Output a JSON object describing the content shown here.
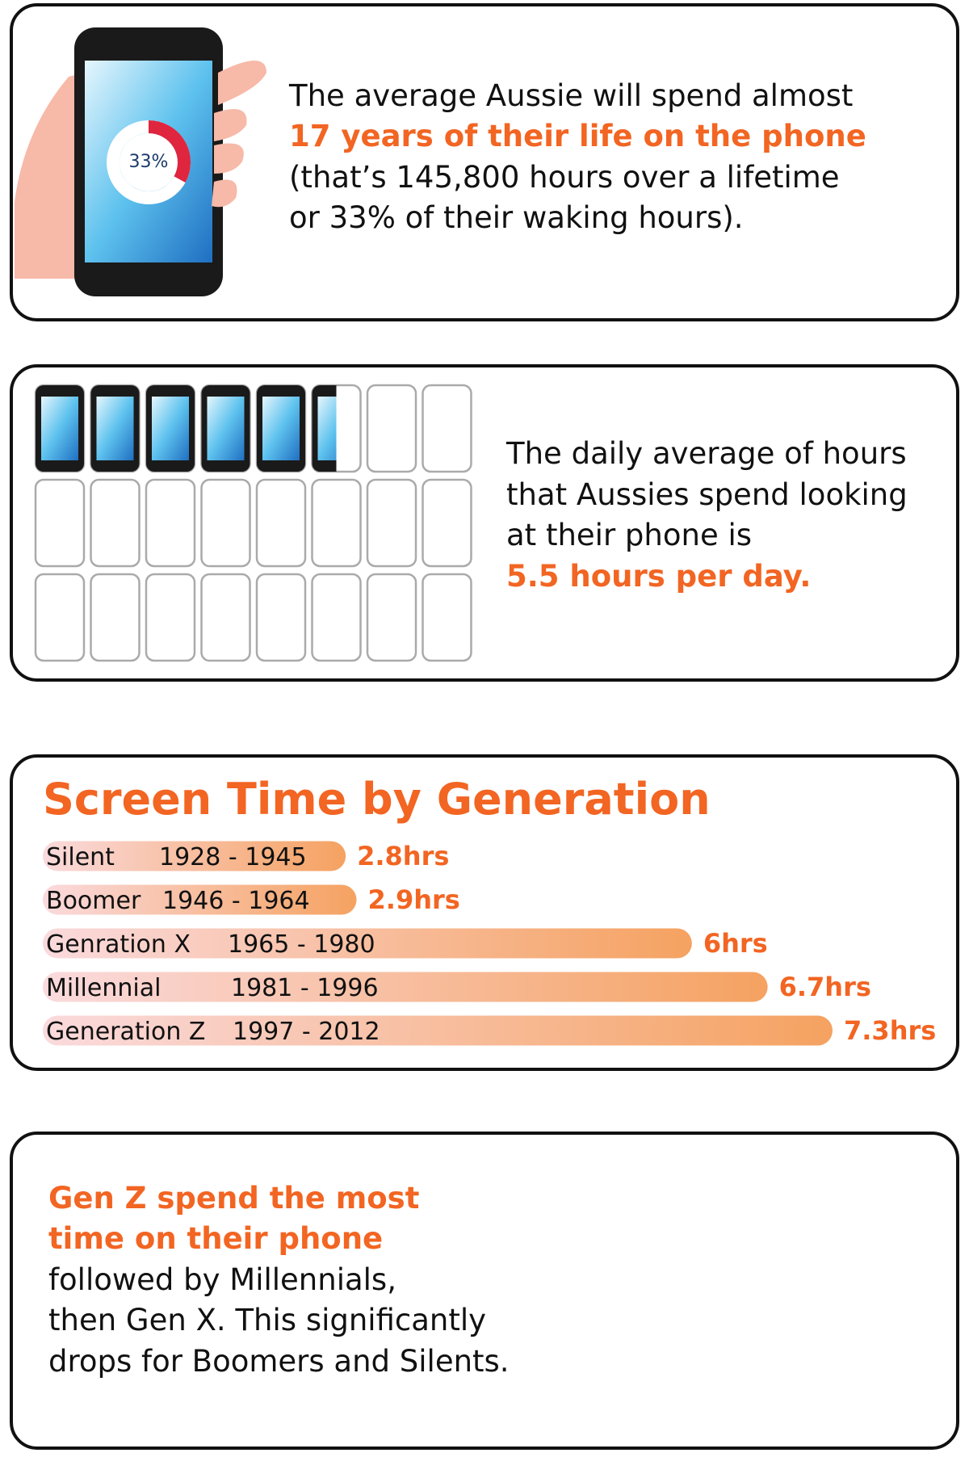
{
  "phone_panel": {
    "donut": {
      "value": 33,
      "label": "33%"
    },
    "lines": [
      "The average Aussie will spend almost",
      "(that’s 145,800 hours over a lifetime",
      "or 33% of their waking hours)."
    ],
    "highlight": "17 years of their life on the phone"
  },
  "daily_panel": {
    "hours": 5.5,
    "total_slots": 24,
    "lines": [
      "The daily average of hours",
      "that Aussies spend looking",
      "at their phone is"
    ],
    "highlight": "5.5 hours per day."
  },
  "chart_data": {
    "type": "bar",
    "orientation": "horizontal",
    "title": "Screen Time by Generation",
    "categories": [
      "Silent",
      "Boomer",
      "Genration X",
      "Millennial",
      "Generation Z"
    ],
    "years": [
      "1928 - 1945",
      "1946 - 1964",
      "1965 - 1980",
      "1981 - 1996",
      "1997 - 2012"
    ],
    "values": [
      2.8,
      2.9,
      6,
      6.7,
      7.3
    ],
    "value_labels": [
      "2.8hrs",
      "2.9hrs",
      "6hrs",
      "6.7hrs",
      "7.3hrs"
    ],
    "color_start": "#fadadd",
    "color_end": "#f5a261",
    "label_color": "#f26522"
  },
  "summary_panel": {
    "highlight": [
      "Gen Z spend the most",
      "time on their phone"
    ],
    "lines": [
      "followed by Millennials,",
      "then Gen X. This significantly",
      "drops for Boomers and Silents."
    ]
  }
}
